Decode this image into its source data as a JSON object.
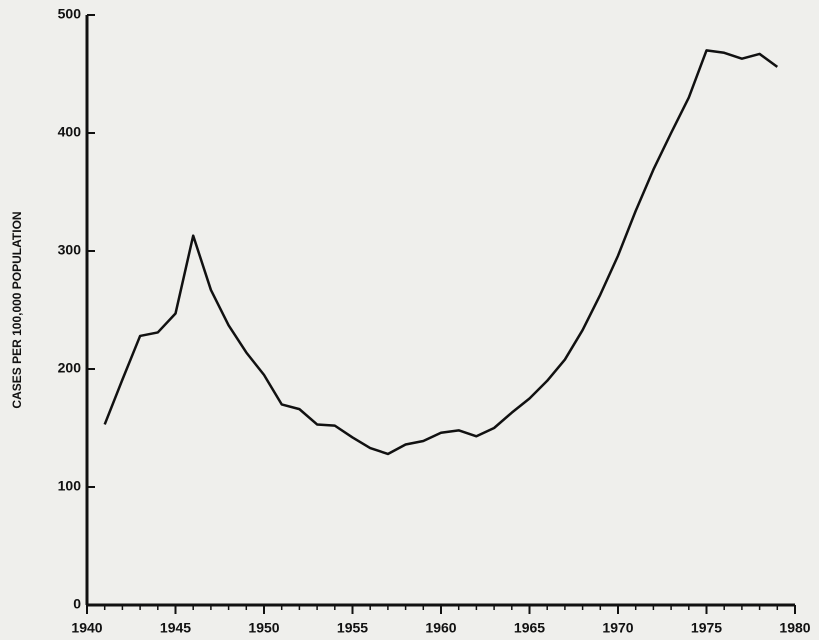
{
  "chart_data": {
    "type": "line",
    "y_label": "CASES PER 100,000 POPULATION",
    "x": [
      1941,
      1942,
      1943,
      1944,
      1945,
      1946,
      1947,
      1948,
      1949,
      1950,
      1951,
      1952,
      1953,
      1954,
      1955,
      1956,
      1957,
      1958,
      1959,
      1960,
      1961,
      1962,
      1963,
      1964,
      1965,
      1966,
      1967,
      1968,
      1969,
      1970,
      1971,
      1972,
      1973,
      1974,
      1975,
      1976,
      1977,
      1978,
      1979
    ],
    "series": [
      {
        "name": "Cases",
        "color": "#111111",
        "values": [
          153,
          191,
          228,
          231,
          247,
          313,
          267,
          237,
          214,
          195,
          170,
          166,
          153,
          152,
          142,
          133,
          128,
          136,
          139,
          146,
          148,
          143,
          150,
          163,
          175,
          190,
          208,
          233,
          263,
          296,
          334,
          369,
          400,
          430,
          470,
          468,
          463,
          467,
          456
        ]
      }
    ],
    "xlim": [
      1940,
      1980
    ],
    "xticks": [
      1940,
      1945,
      1950,
      1955,
      1960,
      1965,
      1970,
      1975,
      1980
    ],
    "ylim": [
      0,
      500
    ],
    "yticks": [
      0,
      100,
      200,
      300,
      400,
      500
    ]
  }
}
